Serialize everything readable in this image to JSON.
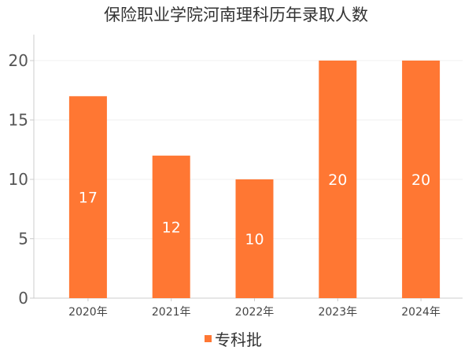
{
  "chart_data": {
    "type": "bar",
    "title": "保险职业学院河南理科历年录取人数",
    "categories": [
      "2020年",
      "2021年",
      "2022年",
      "2023年",
      "2024年"
    ],
    "series": [
      {
        "name": "专科批",
        "values": [
          17,
          12,
          10,
          20,
          20
        ],
        "color": "#ff7733"
      }
    ],
    "ylim": [
      0,
      22
    ],
    "yticks": [
      0,
      5,
      10,
      15,
      20
    ],
    "ytick_labels": [
      "0",
      "5",
      "10",
      "15",
      "20"
    ],
    "xlabel": "",
    "ylabel": "",
    "grid": true,
    "legend_position": "bottom-center",
    "data_labels": [
      "17",
      "12",
      "10",
      "20",
      "20"
    ]
  }
}
